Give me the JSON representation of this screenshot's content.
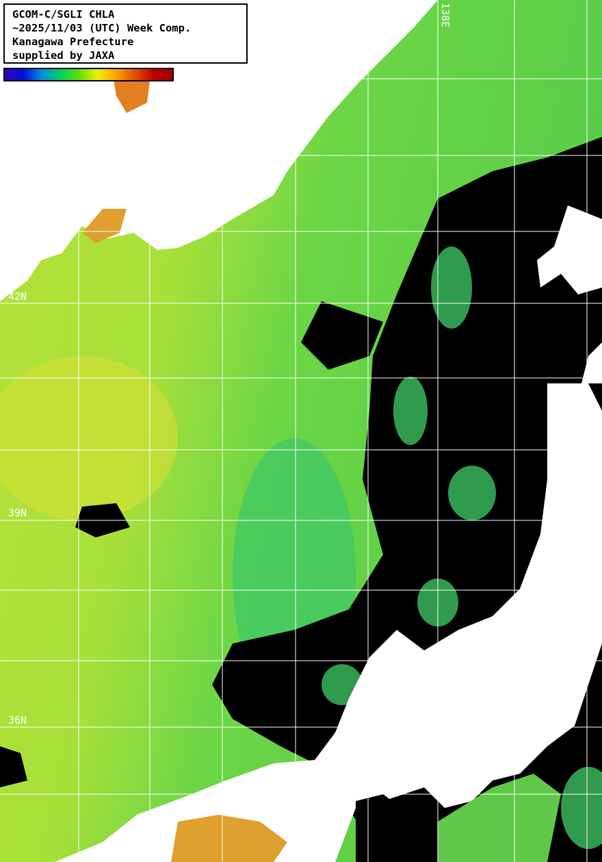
{
  "legend": {
    "lines": [
      "GCOM-C/SGLI CHLA",
      "~2025/11/03 (UTC) Week Comp.",
      "Kanagawa Prefecture",
      "supplied by JAXA"
    ]
  },
  "colorbar": {
    "colors": [
      "#3a00c0",
      "#0010d8",
      "#0090e0",
      "#00d060",
      "#60e000",
      "#f0f000",
      "#ffa000",
      "#e05000",
      "#c00000",
      "#a00000"
    ]
  },
  "grid": {
    "lat_labels": [
      "42N",
      "39N",
      "36N"
    ],
    "lon_labels": [
      "138E"
    ]
  },
  "colors": {
    "land": "#ffffff",
    "no_data": "#000000",
    "sea_low": "#3ec850",
    "sea_mid": "#9be03a",
    "sea_high": "#e8e030",
    "grid": "#ffffff"
  }
}
